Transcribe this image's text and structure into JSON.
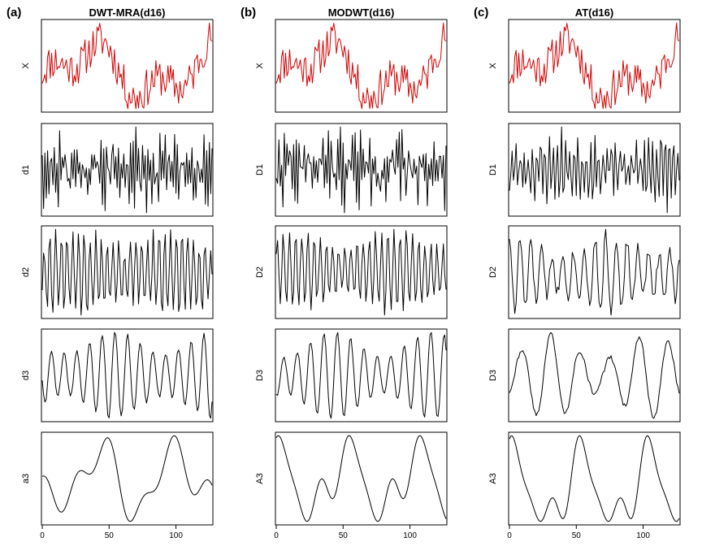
{
  "chart_data": [
    {
      "type": "line",
      "panel_letter": "(a)",
      "title": "DWT-MRA(d16)",
      "xlim": [
        0,
        127
      ],
      "x_ticks": [
        0,
        50,
        100
      ],
      "x_tick_labels": [
        "0",
        "50",
        "100"
      ],
      "panels": [
        {
          "ylabel": "X",
          "color": "#d40000",
          "kind": "signal",
          "values": []
        },
        {
          "ylabel": "d1",
          "color": "#000000",
          "kind": "detail1",
          "values": []
        },
        {
          "ylabel": "d2",
          "color": "#000000",
          "kind": "detail2",
          "values": []
        },
        {
          "ylabel": "d3",
          "color": "#000000",
          "kind": "detail3",
          "values": []
        },
        {
          "ylabel": "a3",
          "color": "#000000",
          "kind": "approx",
          "values": []
        }
      ]
    },
    {
      "type": "line",
      "panel_letter": "(b)",
      "title": "MODWT(d16)",
      "xlim": [
        0,
        127
      ],
      "x_ticks": [
        0,
        50,
        100
      ],
      "x_tick_labels": [
        "0",
        "50",
        "100"
      ],
      "panels": [
        {
          "ylabel": "X",
          "color": "#d40000",
          "kind": "signal",
          "values": []
        },
        {
          "ylabel": "D1",
          "color": "#000000",
          "kind": "detail1",
          "values": []
        },
        {
          "ylabel": "D2",
          "color": "#000000",
          "kind": "detail2",
          "values": []
        },
        {
          "ylabel": "D3",
          "color": "#000000",
          "kind": "detail3",
          "values": []
        },
        {
          "ylabel": "A3",
          "color": "#000000",
          "kind": "approx",
          "values": []
        }
      ]
    },
    {
      "type": "line",
      "panel_letter": "(c)",
      "title": "AT(d16)",
      "xlim": [
        0,
        127
      ],
      "x_ticks": [
        0,
        50,
        100
      ],
      "x_tick_labels": [
        "0",
        "50",
        "100"
      ],
      "panels": [
        {
          "ylabel": "X",
          "color": "#d40000",
          "kind": "signal",
          "values": []
        },
        {
          "ylabel": "D1",
          "color": "#000000",
          "kind": "detail1",
          "values": []
        },
        {
          "ylabel": "D2",
          "color": "#000000",
          "kind": "detail2",
          "values": []
        },
        {
          "ylabel": "D3",
          "color": "#000000",
          "kind": "detail3",
          "values": []
        },
        {
          "ylabel": "A3",
          "color": "#000000",
          "kind": "approx",
          "values": []
        }
      ]
    }
  ]
}
